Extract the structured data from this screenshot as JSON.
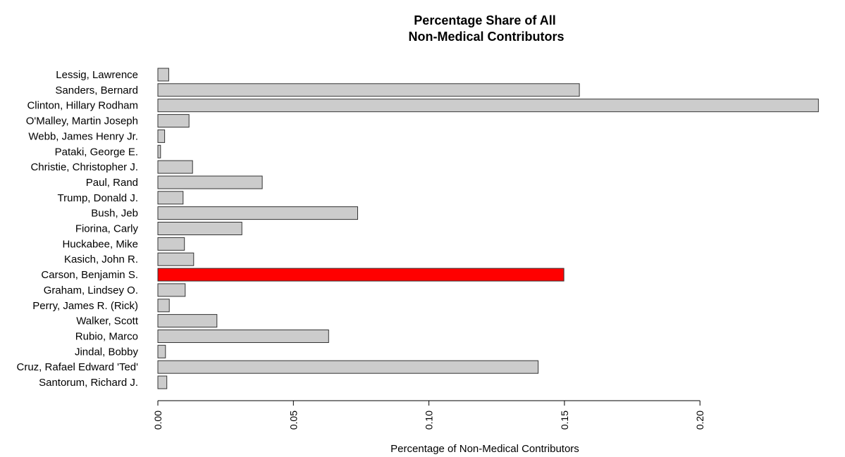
{
  "chart_data": {
    "type": "bar",
    "orientation": "horizontal",
    "title": [
      "Percentage Share of All",
      "Non-Medical Contributors"
    ],
    "xlabel": "Percentage of Non-Medical Contributors",
    "ylabel": "",
    "xlim": [
      0,
      0.244
    ],
    "xticks": [
      "0.00",
      "0.05",
      "0.10",
      "0.15",
      "0.20"
    ],
    "xtick_values": [
      0,
      0.05,
      0.1,
      0.15,
      0.2
    ],
    "bar_color": "#cccccc",
    "highlight_color": "#ff0000",
    "bar_border": "#333333",
    "highlight_category": "Carson, Benjamin S.",
    "categories": [
      "Lessig, Lawrence",
      "Sanders, Bernard",
      "Clinton, Hillary Rodham",
      "O'Malley, Martin Joseph",
      "Webb, James Henry Jr.",
      "Pataki, George E.",
      "Christie, Christopher J.",
      "Paul, Rand",
      "Trump, Donald J.",
      "Bush, Jeb",
      "Fiorina, Carly",
      "Huckabee, Mike",
      "Kasich, John R.",
      "Carson, Benjamin S.",
      "Graham, Lindsey O.",
      "Perry, James R. (Rick)",
      "Walker, Scott",
      "Rubio, Marco",
      "Jindal, Bobby",
      "Cruz, Rafael Edward 'Ted'",
      "Santorum, Richard J."
    ],
    "values": [
      0.004,
      0.1555,
      0.2437,
      0.0115,
      0.0025,
      0.001,
      0.0128,
      0.0385,
      0.0093,
      0.0737,
      0.031,
      0.0098,
      0.0132,
      0.1498,
      0.0101,
      0.0042,
      0.0218,
      0.063,
      0.0028,
      0.1403,
      0.0033
    ]
  }
}
